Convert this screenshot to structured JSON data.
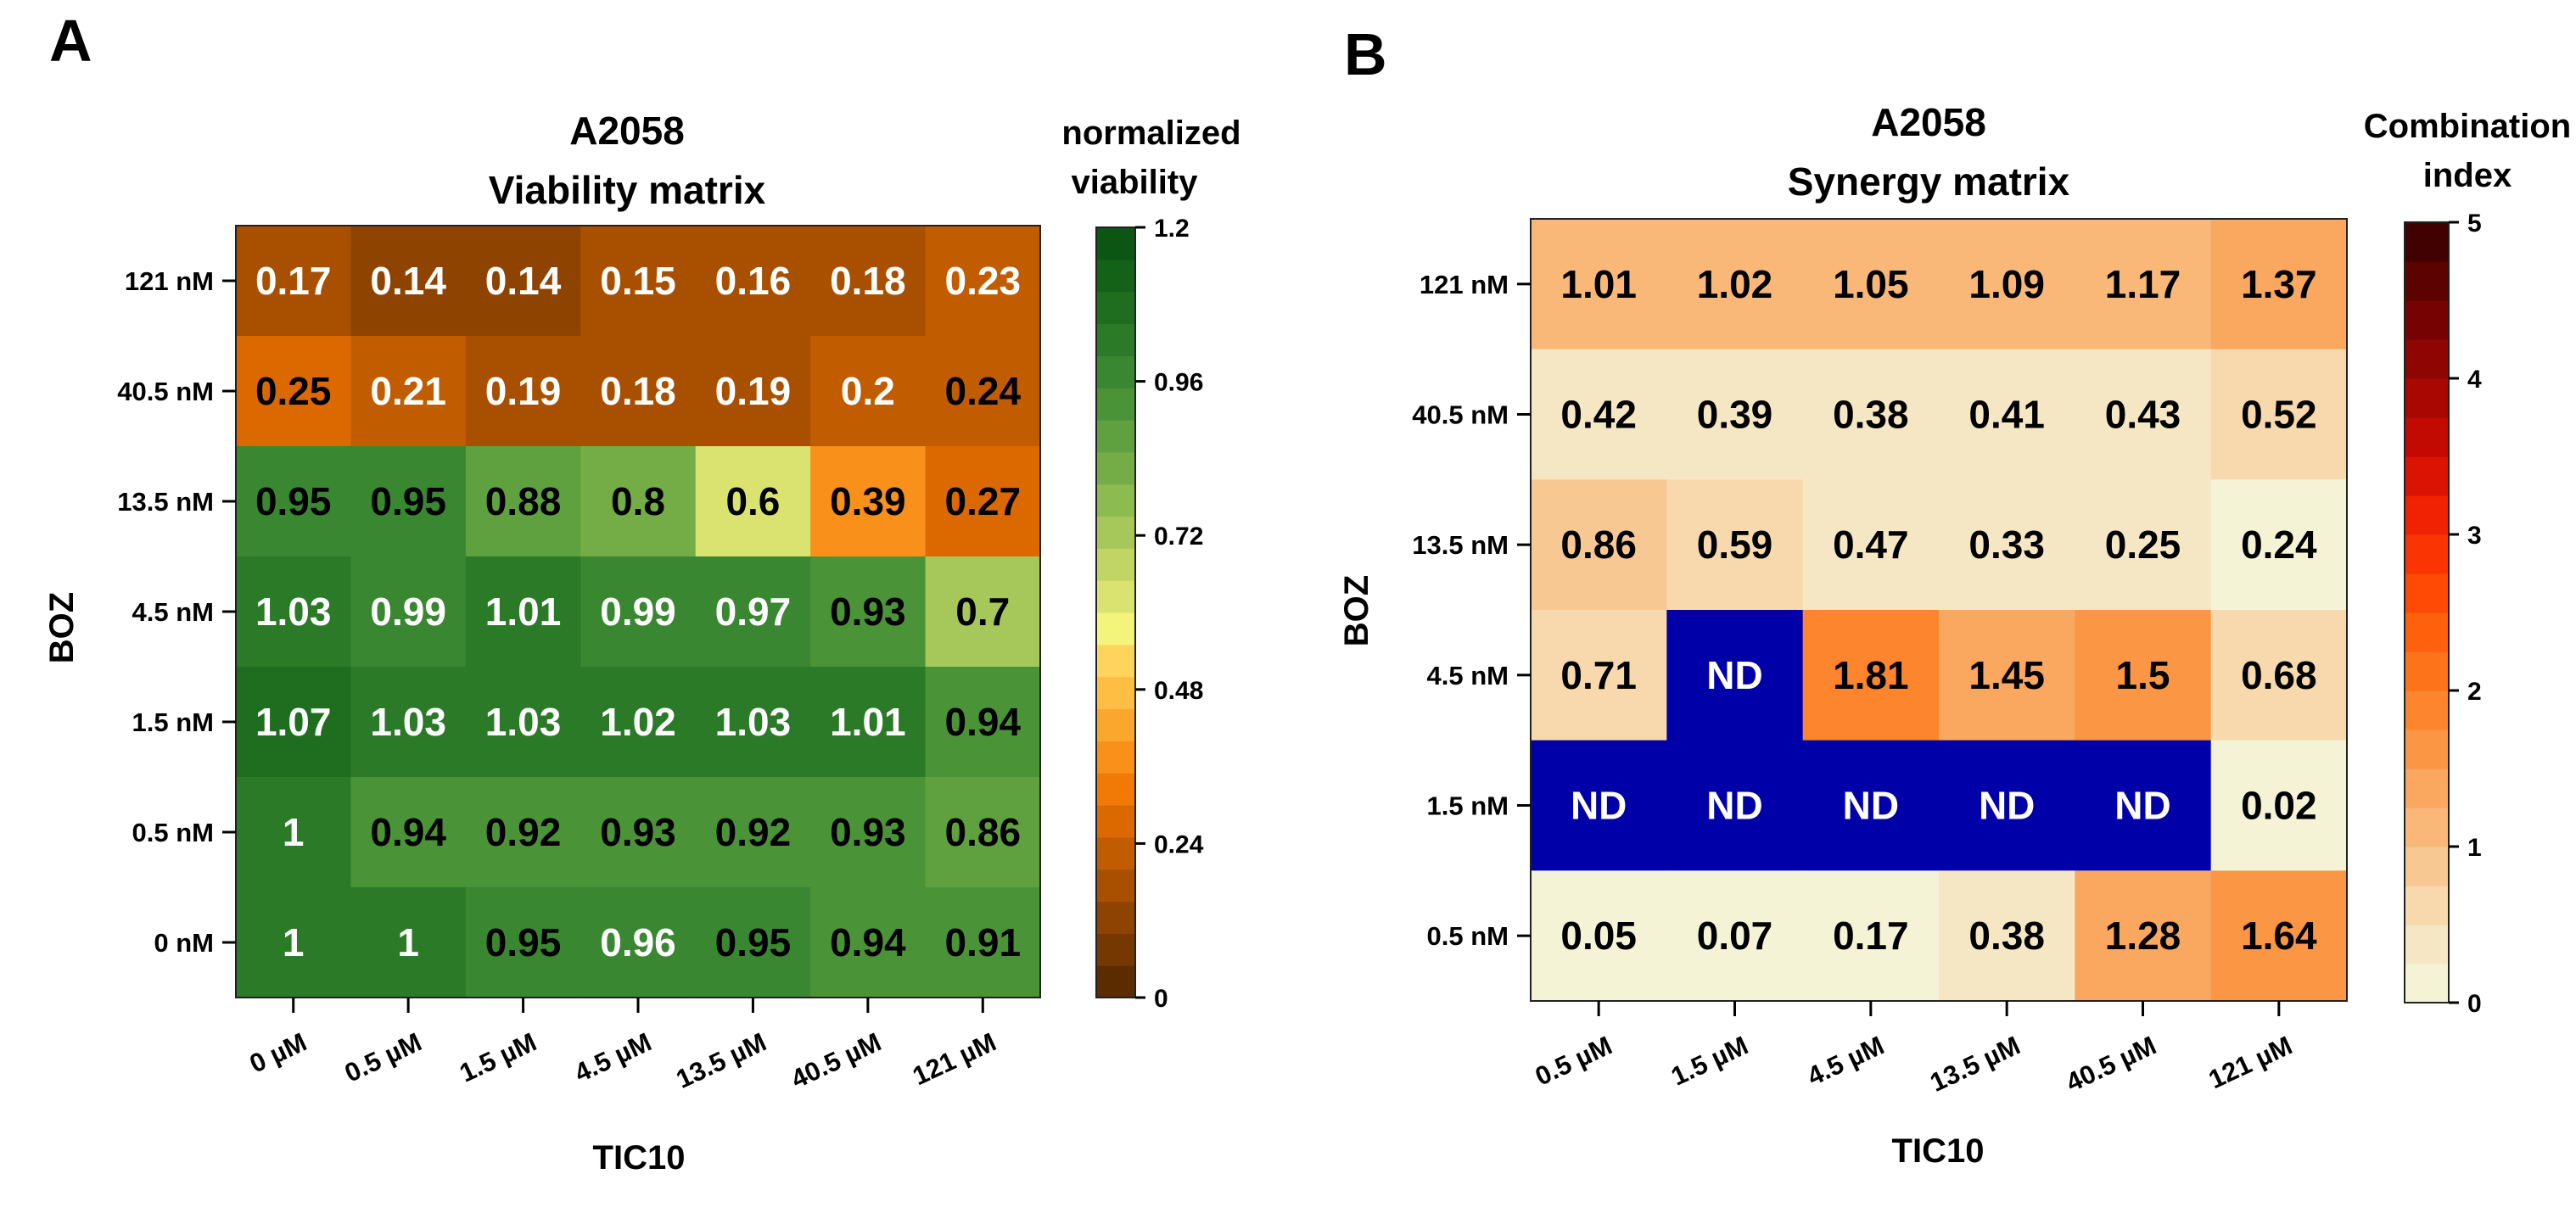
{
  "chart_data": [
    {
      "type": "heatmap",
      "panel_label": "A",
      "title_line1": "A2058",
      "title_line2": "Viability matrix",
      "xlabel": "TIC10",
      "ylabel": "BOZ",
      "x_categories": [
        "0 µM",
        "0.5 µM",
        "1.5 µM",
        "4.5 µM",
        "13.5 µM",
        "40.5 µM",
        "121 µM"
      ],
      "y_categories": [
        "121 nM",
        "40.5 nM",
        "13.5 nM",
        "4.5 nM",
        "1.5 nM",
        "0.5 nM",
        "0 nM"
      ],
      "values": [
        [
          0.17,
          0.14,
          0.14,
          0.15,
          0.16,
          0.18,
          0.23
        ],
        [
          0.25,
          0.21,
          0.19,
          0.18,
          0.19,
          0.2,
          0.24
        ],
        [
          0.95,
          0.95,
          0.88,
          0.8,
          0.6,
          0.39,
          0.27
        ],
        [
          1.03,
          0.99,
          1.01,
          0.99,
          0.97,
          0.93,
          0.7
        ],
        [
          1.07,
          1.03,
          1.03,
          1.02,
          1.03,
          1.01,
          0.94
        ],
        [
          1,
          0.94,
          0.92,
          0.93,
          0.92,
          0.93,
          0.86
        ],
        [
          1,
          1,
          0.95,
          0.96,
          0.95,
          0.94,
          0.91
        ]
      ],
      "labels": [
        [
          "0.17",
          "0.14",
          "0.14",
          "0.15",
          "0.16",
          "0.18",
          "0.23"
        ],
        [
          "0.25",
          "0.21",
          "0.19",
          "0.18",
          "0.19",
          "0.2",
          "0.24"
        ],
        [
          "0.95",
          "0.95",
          "0.88",
          "0.8",
          "0.6",
          "0.39",
          "0.27"
        ],
        [
          "1.03",
          "0.99",
          "1.01",
          "0.99",
          "0.97",
          "0.93",
          "0.7"
        ],
        [
          "1.07",
          "1.03",
          "1.03",
          "1.02",
          "1.03",
          "1.01",
          "0.94"
        ],
        [
          "1",
          "0.94",
          "0.92",
          "0.93",
          "0.92",
          "0.93",
          "0.86"
        ],
        [
          "1",
          "1",
          "0.95",
          "0.96",
          "0.95",
          "0.94",
          "0.91"
        ]
      ],
      "label_colors": [
        [
          "w",
          "w",
          "w",
          "w",
          "w",
          "w",
          "w"
        ],
        [
          "k",
          "w",
          "w",
          "w",
          "w",
          "w",
          "k"
        ],
        [
          "k",
          "k",
          "k",
          "k",
          "k",
          "k",
          "k"
        ],
        [
          "w",
          "w",
          "w",
          "w",
          "w",
          "k",
          "k"
        ],
        [
          "w",
          "w",
          "w",
          "w",
          "w",
          "w",
          "k"
        ],
        [
          "w",
          "k",
          "k",
          "k",
          "k",
          "k",
          "k"
        ],
        [
          "w",
          "w",
          "k",
          "w",
          "k",
          "k",
          "k"
        ]
      ],
      "colorbar": {
        "title_line1": "normalized",
        "title_line2": "viability",
        "range": [
          0,
          1.2
        ],
        "ticks": [
          "0",
          "0.24",
          "0.48",
          "0.72",
          "0.96",
          "1.2"
        ],
        "palette": [
          "#5a2c00",
          "#753800",
          "#8e4400",
          "#a85000",
          "#c25c00",
          "#dc6800",
          "#f07a05",
          "#f8901a",
          "#fba72e",
          "#fdbe43",
          "#fed45a",
          "#f3f47a",
          "#dbe370",
          "#c1d564",
          "#a6c85a",
          "#8cbb50",
          "#74ad46",
          "#5ea13e",
          "#4a9437",
          "#398730",
          "#2b7a28",
          "#1f6e20",
          "#146218",
          "#0a5612"
        ]
      }
    },
    {
      "type": "heatmap",
      "panel_label": "B",
      "title_line1": "A2058",
      "title_line2": "Synergy matrix",
      "xlabel": "TIC10",
      "ylabel": "BOZ",
      "x_categories": [
        "0.5 µM",
        "1.5 µM",
        "4.5 µM",
        "13.5 µM",
        "40.5 µM",
        "121 µM"
      ],
      "y_categories": [
        "121 nM",
        "40.5 nM",
        "13.5 nM",
        "4.5 nM",
        "1.5 nM",
        "0.5 nM"
      ],
      "values": [
        [
          1.01,
          1.02,
          1.05,
          1.09,
          1.17,
          1.37
        ],
        [
          0.42,
          0.39,
          0.38,
          0.41,
          0.43,
          0.52
        ],
        [
          0.86,
          0.59,
          0.47,
          0.33,
          0.25,
          0.24
        ],
        [
          0.71,
          null,
          1.81,
          1.45,
          1.5,
          0.68
        ],
        [
          null,
          null,
          null,
          null,
          null,
          0.02
        ],
        [
          0.05,
          0.07,
          0.17,
          0.38,
          1.28,
          1.64
        ]
      ],
      "labels": [
        [
          "1.01",
          "1.02",
          "1.05",
          "1.09",
          "1.17",
          "1.37"
        ],
        [
          "0.42",
          "0.39",
          "0.38",
          "0.41",
          "0.43",
          "0.52"
        ],
        [
          "0.86",
          "0.59",
          "0.47",
          "0.33",
          "0.25",
          "0.24"
        ],
        [
          "0.71",
          "ND",
          "1.81",
          "1.45",
          "1.5",
          "0.68"
        ],
        [
          "ND",
          "ND",
          "ND",
          "ND",
          "ND",
          "0.02"
        ],
        [
          "0.05",
          "0.07",
          "0.17",
          "0.38",
          "1.28",
          "1.64"
        ]
      ],
      "nd_color": "#0000a8",
      "colorbar": {
        "title_line1": "Combination",
        "title_line2": "index",
        "range": [
          0,
          5
        ],
        "ticks": [
          "0",
          "1",
          "2",
          "3",
          "4",
          "5"
        ],
        "palette": [
          "#f5f3d6",
          "#f6e7c4",
          "#f7d9ad",
          "#f8c892",
          "#f9b877",
          "#faa75f",
          "#fb9645",
          "#fc852d",
          "#fd731a",
          "#fe600c",
          "#fe4a05",
          "#fb3403",
          "#f02203",
          "#db1303",
          "#c20a02",
          "#a80702",
          "#8f0502",
          "#760302",
          "#5c0201",
          "#420101"
        ]
      }
    }
  ]
}
